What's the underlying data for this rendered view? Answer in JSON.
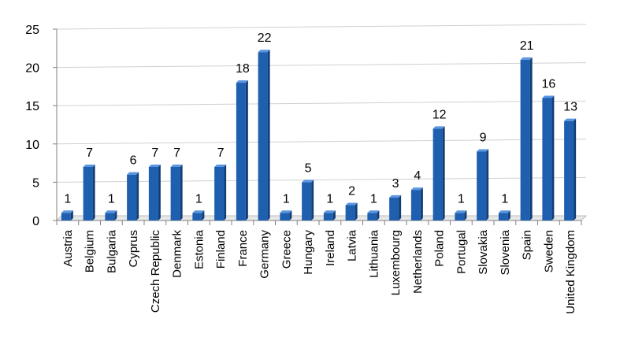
{
  "chart_data": {
    "type": "bar",
    "categories": [
      "Austria",
      "Belgium",
      "Bulgaria",
      "Cyprus",
      "Czech Republic",
      "Denmark",
      "Estonia",
      "Finland",
      "France",
      "Germany",
      "Greece",
      "Hungary",
      "Ireland",
      "Latvia",
      "Lithuania",
      "Luxembourg",
      "Netherlands",
      "Poland",
      "Portugal",
      "Slovakia",
      "Slovenia",
      "Spain",
      "Sweden",
      "United Kingdom"
    ],
    "values": [
      1,
      7,
      1,
      6,
      7,
      7,
      1,
      7,
      18,
      22,
      1,
      5,
      1,
      2,
      1,
      3,
      4,
      12,
      1,
      9,
      1,
      21,
      16,
      13
    ],
    "yticks": [
      "0",
      "5",
      "10",
      "15",
      "20",
      "25"
    ],
    "ylim": [
      0,
      25
    ],
    "grid": true,
    "bar_color": "#1f5fb0",
    "bar_top_color": "#5a96e0",
    "bar_side_color": "#123e78",
    "title": "",
    "xlabel": "",
    "ylabel": ""
  }
}
